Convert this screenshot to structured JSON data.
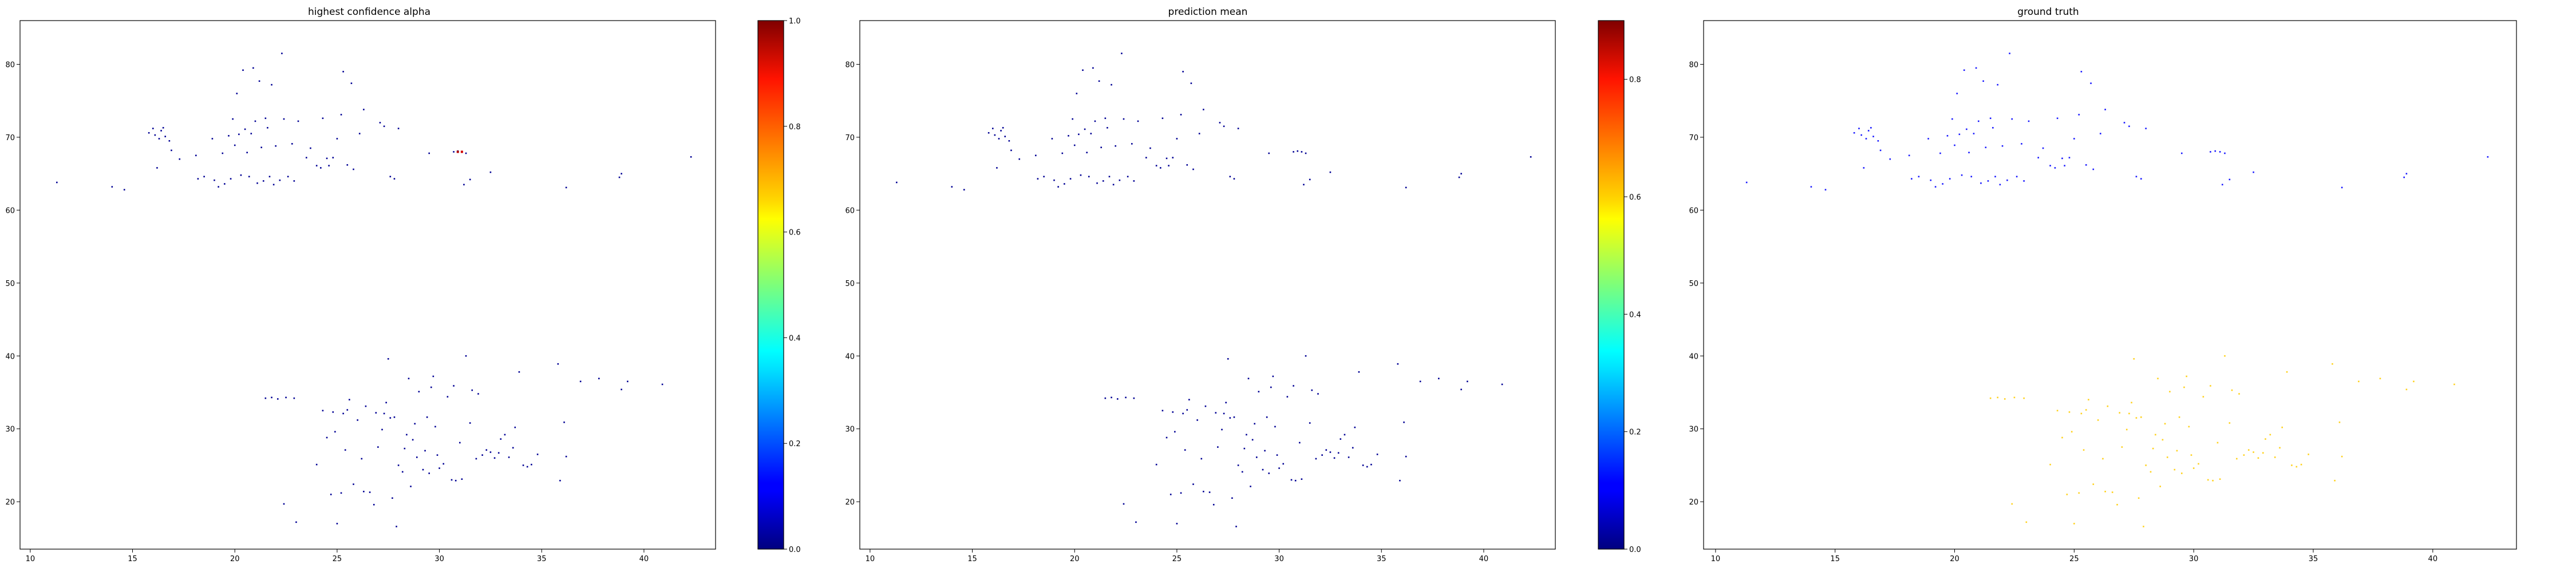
{
  "chart_data": [
    {
      "type": "scatter",
      "title": "highest confidence alpha",
      "xlabel": "",
      "ylabel": "",
      "xlim": [
        9.5,
        43.5
      ],
      "ylim": [
        13.5,
        86
      ],
      "xticks": [
        10,
        15,
        20,
        25,
        30,
        35,
        40
      ],
      "yticks": [
        20,
        30,
        40,
        50,
        60,
        70,
        80
      ],
      "grid": false,
      "color_scale": "jet",
      "colorbar": {
        "range": [
          0,
          1.0
        ],
        "ticks": [
          "0.0",
          "0.2",
          "0.4",
          "0.6",
          "0.8",
          "1.0"
        ]
      },
      "point_value": 0.02,
      "highlights": [
        {
          "x": 30.9,
          "y": 68.0,
          "value": 0.95
        },
        {
          "x": 31.1,
          "y": 68.0,
          "value": 0.92
        }
      ]
    },
    {
      "type": "scatter",
      "title": "prediction mean",
      "xlabel": "",
      "ylabel": "",
      "xlim": [
        9.5,
        43.5
      ],
      "ylim": [
        13.5,
        86
      ],
      "xticks": [
        10,
        15,
        20,
        25,
        30,
        35,
        40
      ],
      "yticks": [
        20,
        30,
        40,
        50,
        60,
        70,
        80
      ],
      "grid": false,
      "color_scale": "jet",
      "colorbar": {
        "range": [
          0,
          0.9
        ],
        "ticks": [
          "0.0",
          "0.2",
          "0.4",
          "0.6",
          "0.8"
        ]
      },
      "point_value": 0.02,
      "highlights": []
    },
    {
      "type": "scatter",
      "title": "ground truth",
      "xlabel": "",
      "ylabel": "",
      "xlim": [
        9.5,
        43.5
      ],
      "ylim": [
        13.5,
        86
      ],
      "xticks": [
        10,
        15,
        20,
        25,
        30,
        35,
        40
      ],
      "yticks": [
        20,
        30,
        40,
        50,
        60,
        70,
        80
      ],
      "grid": false,
      "upper_cluster_color": "#1a1aff",
      "lower_cluster_color": "#ffd21f"
    }
  ],
  "points": {
    "upper": [
      [
        11.3,
        63.8
      ],
      [
        14.0,
        63.2
      ],
      [
        14.6,
        62.8
      ],
      [
        15.8,
        70.6
      ],
      [
        16.0,
        71.2
      ],
      [
        16.1,
        70.3
      ],
      [
        16.2,
        65.8
      ],
      [
        16.3,
        69.8
      ],
      [
        16.4,
        70.9
      ],
      [
        16.5,
        71.3
      ],
      [
        16.6,
        70.1
      ],
      [
        16.8,
        69.5
      ],
      [
        16.9,
        68.2
      ],
      [
        17.3,
        67.0
      ],
      [
        18.1,
        67.5
      ],
      [
        18.2,
        64.3
      ],
      [
        18.5,
        64.6
      ],
      [
        18.9,
        69.8
      ],
      [
        19.0,
        64.1
      ],
      [
        19.2,
        63.2
      ],
      [
        19.4,
        67.8
      ],
      [
        19.5,
        63.6
      ],
      [
        19.7,
        70.2
      ],
      [
        19.8,
        64.3
      ],
      [
        19.9,
        72.5
      ],
      [
        20.0,
        68.9
      ],
      [
        20.1,
        76.0
      ],
      [
        20.2,
        70.4
      ],
      [
        20.3,
        64.8
      ],
      [
        20.4,
        79.2
      ],
      [
        20.5,
        71.1
      ],
      [
        20.6,
        67.9
      ],
      [
        20.7,
        64.6
      ],
      [
        20.8,
        70.5
      ],
      [
        20.9,
        79.5
      ],
      [
        21.0,
        72.2
      ],
      [
        21.1,
        63.7
      ],
      [
        21.2,
        77.7
      ],
      [
        21.3,
        68.6
      ],
      [
        21.4,
        64.0
      ],
      [
        21.5,
        72.6
      ],
      [
        21.6,
        71.3
      ],
      [
        21.7,
        64.6
      ],
      [
        21.8,
        77.2
      ],
      [
        21.9,
        63.5
      ],
      [
        22.0,
        68.8
      ],
      [
        22.2,
        64.1
      ],
      [
        22.3,
        81.5
      ],
      [
        22.4,
        72.5
      ],
      [
        22.6,
        64.6
      ],
      [
        22.8,
        69.1
      ],
      [
        22.9,
        64.0
      ],
      [
        23.1,
        72.2
      ],
      [
        23.5,
        67.2
      ],
      [
        23.7,
        68.5
      ],
      [
        24.0,
        66.1
      ],
      [
        24.2,
        65.8
      ],
      [
        24.3,
        72.6
      ],
      [
        24.5,
        67.1
      ],
      [
        24.6,
        66.1
      ],
      [
        24.8,
        67.2
      ],
      [
        25.0,
        69.8
      ],
      [
        25.2,
        73.1
      ],
      [
        25.3,
        79.0
      ],
      [
        25.5,
        66.2
      ],
      [
        25.7,
        77.4
      ],
      [
        25.8,
        65.6
      ],
      [
        26.1,
        70.5
      ],
      [
        26.3,
        73.8
      ],
      [
        27.1,
        72.0
      ],
      [
        27.3,
        71.5
      ],
      [
        27.6,
        64.6
      ],
      [
        27.8,
        64.3
      ],
      [
        28.0,
        71.2
      ],
      [
        29.5,
        67.8
      ],
      [
        31.2,
        63.5
      ],
      [
        31.5,
        64.2
      ],
      [
        32.5,
        65.2
      ],
      [
        36.2,
        63.1
      ],
      [
        38.8,
        64.5
      ],
      [
        38.9,
        65.0
      ],
      [
        42.3,
        67.3
      ],
      [
        30.7,
        68.0
      ],
      [
        30.9,
        68.1
      ],
      [
        31.1,
        68.0
      ],
      [
        31.3,
        67.8
      ]
    ],
    "lower": [
      [
        21.5,
        34.2
      ],
      [
        21.8,
        34.3
      ],
      [
        22.1,
        34.1
      ],
      [
        22.5,
        34.3
      ],
      [
        22.9,
        34.2
      ],
      [
        23.0,
        17.2
      ],
      [
        22.4,
        19.7
      ],
      [
        24.0,
        25.1
      ],
      [
        24.3,
        32.5
      ],
      [
        24.5,
        28.8
      ],
      [
        24.7,
        21.0
      ],
      [
        24.8,
        32.3
      ],
      [
        24.9,
        29.6
      ],
      [
        25.0,
        17.0
      ],
      [
        25.2,
        21.2
      ],
      [
        25.3,
        32.1
      ],
      [
        25.4,
        27.1
      ],
      [
        25.5,
        32.6
      ],
      [
        25.6,
        34.0
      ],
      [
        25.8,
        22.4
      ],
      [
        26.0,
        31.2
      ],
      [
        26.2,
        25.9
      ],
      [
        26.3,
        21.4
      ],
      [
        26.4,
        33.1
      ],
      [
        26.6,
        21.3
      ],
      [
        26.8,
        19.6
      ],
      [
        26.9,
        32.2
      ],
      [
        27.0,
        27.5
      ],
      [
        27.2,
        29.9
      ],
      [
        27.3,
        32.1
      ],
      [
        27.4,
        33.6
      ],
      [
        27.5,
        39.6
      ],
      [
        27.6,
        31.5
      ],
      [
        27.7,
        20.5
      ],
      [
        27.8,
        31.6
      ],
      [
        27.9,
        16.6
      ],
      [
        28.0,
        25.0
      ],
      [
        28.2,
        24.1
      ],
      [
        28.3,
        27.3
      ],
      [
        28.4,
        29.2
      ],
      [
        28.5,
        36.9
      ],
      [
        28.6,
        22.1
      ],
      [
        28.7,
        28.5
      ],
      [
        28.8,
        30.7
      ],
      [
        28.9,
        26.1
      ],
      [
        29.0,
        35.1
      ],
      [
        29.2,
        24.4
      ],
      [
        29.3,
        27.0
      ],
      [
        29.4,
        31.6
      ],
      [
        29.5,
        23.9
      ],
      [
        29.6,
        35.7
      ],
      [
        29.7,
        37.2
      ],
      [
        29.8,
        30.3
      ],
      [
        29.9,
        26.4
      ],
      [
        30.0,
        24.6
      ],
      [
        30.2,
        25.2
      ],
      [
        30.4,
        34.4
      ],
      [
        30.6,
        23.0
      ],
      [
        30.7,
        35.9
      ],
      [
        30.8,
        22.9
      ],
      [
        31.0,
        28.1
      ],
      [
        31.1,
        23.1
      ],
      [
        31.3,
        40.0
      ],
      [
        31.5,
        30.8
      ],
      [
        31.6,
        35.3
      ],
      [
        31.8,
        25.9
      ],
      [
        31.9,
        34.8
      ],
      [
        32.1,
        26.4
      ],
      [
        32.3,
        27.1
      ],
      [
        32.5,
        26.8
      ],
      [
        32.7,
        26.0
      ],
      [
        32.9,
        26.7
      ],
      [
        33.0,
        28.6
      ],
      [
        33.2,
        29.2
      ],
      [
        33.4,
        26.1
      ],
      [
        33.6,
        27.4
      ],
      [
        33.7,
        30.2
      ],
      [
        33.9,
        37.8
      ],
      [
        34.1,
        25.0
      ],
      [
        34.3,
        24.8
      ],
      [
        34.5,
        25.1
      ],
      [
        34.8,
        26.5
      ],
      [
        35.8,
        38.9
      ],
      [
        35.9,
        22.9
      ],
      [
        36.1,
        30.9
      ],
      [
        36.2,
        26.2
      ],
      [
        36.9,
        36.5
      ],
      [
        37.8,
        36.9
      ],
      [
        38.9,
        35.4
      ],
      [
        39.2,
        36.5
      ],
      [
        40.9,
        36.1
      ]
    ]
  }
}
